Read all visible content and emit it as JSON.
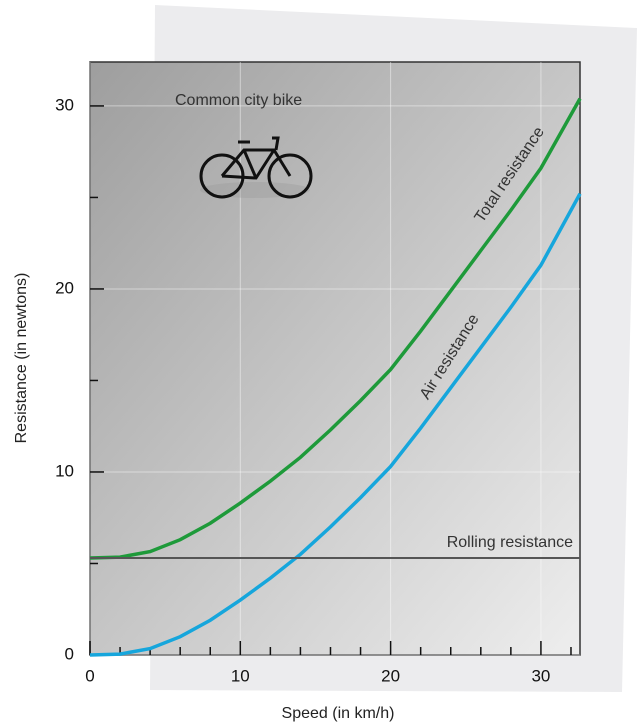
{
  "chart_data": {
    "type": "line",
    "xlabel": "Speed (in km/h)",
    "ylabel": "Resistance (in newtons)",
    "annotation": "Common city bike",
    "xlim": [
      0,
      32.6
    ],
    "ylim": [
      0,
      32.4
    ],
    "xticks": [
      0,
      10,
      20,
      30
    ],
    "yticks": [
      0,
      10,
      20,
      30
    ],
    "x_minor_ticks": [
      2,
      4,
      6,
      8,
      12,
      14,
      16,
      18,
      22,
      24,
      26,
      28,
      32
    ],
    "y_minor_ticks": [
      5,
      15,
      25
    ],
    "grid": true,
    "x": [
      0,
      2,
      4,
      6,
      8,
      10,
      12,
      14,
      16,
      18,
      20,
      22,
      24,
      26,
      28,
      30,
      32.6
    ],
    "series": [
      {
        "name": "Total resistance",
        "color": "#1e9a3a",
        "values": [
          5.3,
          5.35,
          5.65,
          6.3,
          7.2,
          8.3,
          9.5,
          10.8,
          12.3,
          13.9,
          15.6,
          17.7,
          19.9,
          22.1,
          24.3,
          26.6,
          30.4
        ]
      },
      {
        "name": "Air resistance",
        "color": "#16a6dc",
        "values": [
          0,
          0.05,
          0.35,
          1.0,
          1.9,
          3.0,
          4.2,
          5.5,
          7.0,
          8.6,
          10.3,
          12.4,
          14.6,
          16.8,
          19.0,
          21.3,
          25.2
        ]
      },
      {
        "name": "Rolling resistance",
        "color": "#555555",
        "values": [
          5.3,
          5.3,
          5.3,
          5.3,
          5.3,
          5.3,
          5.3,
          5.3,
          5.3,
          5.3,
          5.3,
          5.3,
          5.3,
          5.3,
          5.3,
          5.3,
          5.3
        ]
      }
    ]
  }
}
